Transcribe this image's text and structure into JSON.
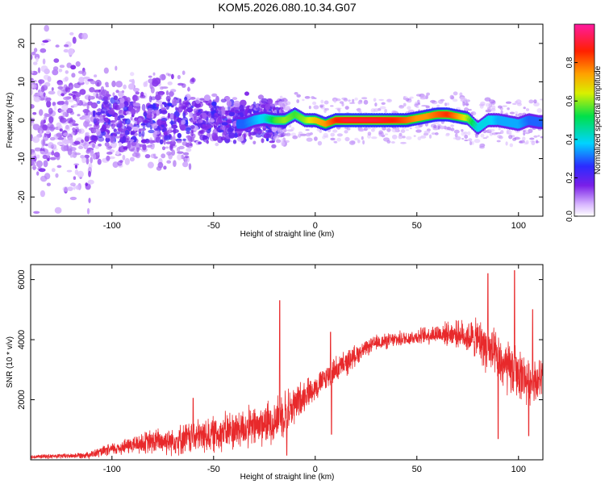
{
  "title": "KOM5.2026.080.10.34.G07",
  "colors": {
    "snr_line": "#e8292b",
    "axis": "#000000"
  },
  "chart_data": [
    {
      "type": "heatmap",
      "name": "spectrogram",
      "xlabel": "Height of straight line (km)",
      "ylabel": "Frequency (Hz)",
      "xlim": [
        -140,
        112
      ],
      "ylim": [
        -25,
        25
      ],
      "xticks": [
        -100,
        -50,
        0,
        50,
        100
      ],
      "yticks": [
        -20,
        -10,
        0,
        10,
        20
      ],
      "xticklabels": [
        "-100",
        "-50",
        "0",
        "50",
        "100"
      ],
      "yticklabels": [
        "-20",
        "-10",
        "0",
        "10",
        "20"
      ],
      "colorbar": {
        "label": "Normalized spectral amplitude",
        "range": [
          0,
          1
        ],
        "ticks": [
          0,
          0.2,
          0.4,
          0.6,
          0.8
        ],
        "ticklabels": [
          "0.0",
          "0.2",
          "0.4",
          "0.6",
          "0.8"
        ],
        "colormap": "rainbow (white-violet-blue-cyan-green-yellow-orange-red-magenta)"
      },
      "ridge": {
        "description": "main signal frequency trace vs height",
        "x": [
          -35,
          -30,
          -25,
          -20,
          -15,
          -10,
          -5,
          0,
          5,
          10,
          15,
          20,
          25,
          30,
          35,
          40,
          45,
          50,
          55,
          60,
          65,
          70,
          75,
          80,
          85,
          90,
          95,
          100,
          105,
          110
        ],
        "freq": [
          -1,
          0,
          0.5,
          0,
          0,
          1.5,
          0,
          0,
          -1,
          0,
          0,
          0,
          0,
          0,
          0,
          0,
          0,
          0.5,
          1,
          1.5,
          1.5,
          1,
          0.5,
          -2,
          0,
          0,
          -0.5,
          -1,
          0,
          -0.5
        ],
        "amplitude": [
          0.3,
          0.35,
          0.4,
          0.55,
          0.6,
          0.55,
          0.6,
          0.7,
          0.75,
          0.85,
          0.9,
          0.9,
          0.9,
          0.9,
          0.88,
          0.85,
          0.8,
          0.75,
          0.75,
          0.8,
          0.85,
          0.75,
          0.6,
          0.4,
          0.4,
          0.35,
          0.35,
          0.35,
          0.3,
          0.3
        ]
      }
    },
    {
      "type": "line",
      "name": "snr",
      "xlabel": "Height of straight line (km)",
      "ylabel": "SNR (10 * v/v)",
      "xlim": [
        -140,
        112
      ],
      "ylim": [
        0,
        6500
      ],
      "xticks": [
        -100,
        -50,
        0,
        50,
        100
      ],
      "yticks": [
        2000,
        4000,
        6000
      ],
      "xticklabels": [
        "-100",
        "-50",
        "0",
        "50",
        "100"
      ],
      "yticklabels": [
        "2000",
        "4000",
        "6000"
      ],
      "envelope": {
        "description": "approximate mean SNR and noise spread along height",
        "x": [
          -140,
          -120,
          -110,
          -100,
          -90,
          -80,
          -70,
          -60,
          -50,
          -40,
          -30,
          -20,
          -17,
          -15,
          -10,
          -5,
          0,
          5,
          8,
          10,
          15,
          20,
          25,
          30,
          40,
          50,
          60,
          70,
          80,
          85,
          90,
          95,
          100,
          105,
          112
        ],
        "mean": [
          100,
          130,
          180,
          350,
          500,
          600,
          650,
          750,
          850,
          1000,
          1100,
          1300,
          1500,
          1600,
          1800,
          2200,
          2400,
          2700,
          2900,
          3000,
          3200,
          3500,
          3700,
          3900,
          4000,
          4100,
          4200,
          4200,
          4000,
          3700,
          3300,
          3000,
          2900,
          2600,
          2700
        ],
        "spread": [
          80,
          100,
          150,
          250,
          350,
          500,
          550,
          650,
          700,
          800,
          800,
          850,
          900,
          900,
          800,
          600,
          500,
          500,
          500,
          500,
          500,
          400,
          300,
          300,
          300,
          300,
          400,
          500,
          800,
          1000,
          1000,
          1100,
          1000,
          900,
          800
        ]
      },
      "spikes": [
        {
          "x": -60,
          "y": 2050
        },
        {
          "x": -17.5,
          "y": 5300
        },
        {
          "x": 7.5,
          "y": 4250
        },
        {
          "x": 85,
          "y": 6200
        },
        {
          "x": 98,
          "y": 6300
        },
        {
          "x": 107,
          "y": 5000
        }
      ],
      "dips": [
        {
          "x": -14,
          "y": 150
        },
        {
          "x": 8,
          "y": 850
        },
        {
          "x": 90,
          "y": 700
        },
        {
          "x": 105,
          "y": 800
        }
      ]
    }
  ]
}
